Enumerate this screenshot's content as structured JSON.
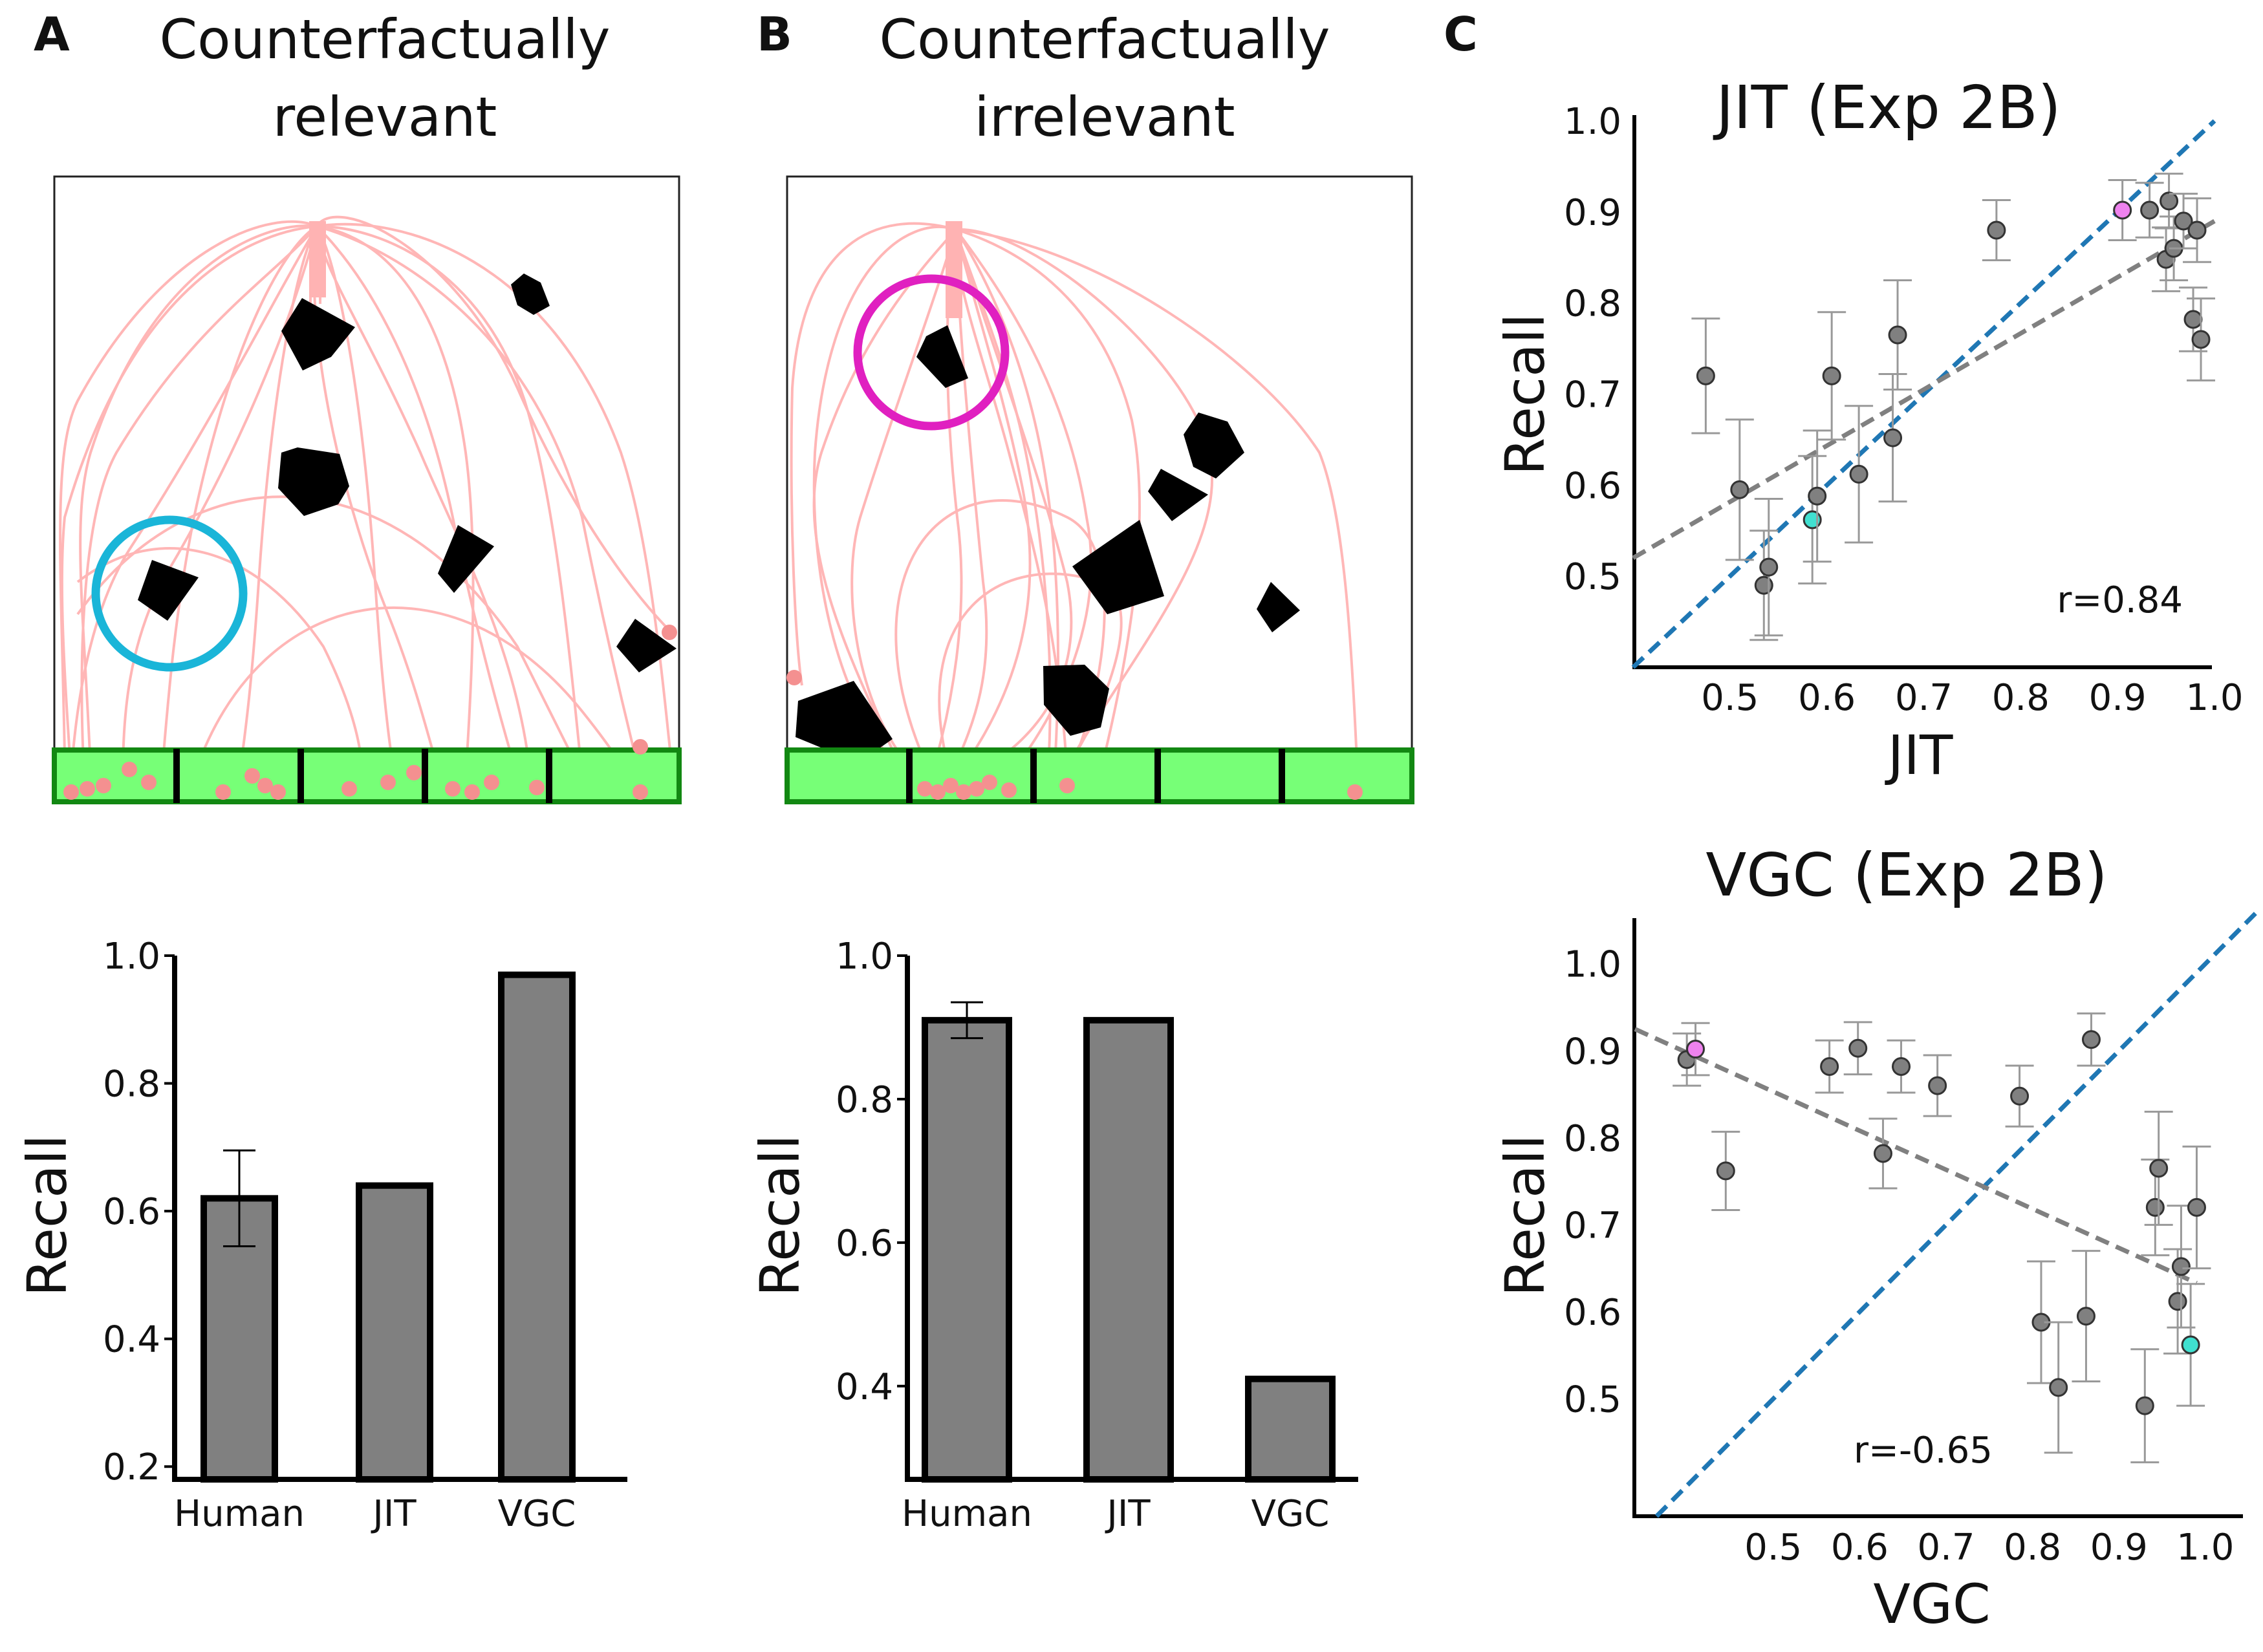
{
  "panels": {
    "A": {
      "letter": "A",
      "title_line1": "Counterfactually",
      "title_line2": "relevant"
    },
    "B": {
      "letter": "B",
      "title_line1": "Counterfactually",
      "title_line2": "irrelevant"
    },
    "C": {
      "letter": "C"
    }
  },
  "chart_data": [
    {
      "id": "bar-relevant",
      "type": "bar",
      "title": "",
      "xlabel": "",
      "ylabel": "Recall",
      "categories": [
        "Human",
        "JIT",
        "VGC"
      ],
      "values": [
        0.62,
        0.64,
        0.97
      ],
      "errors": [
        0.075,
        null,
        null
      ],
      "ylim": [
        0.18,
        1.0
      ],
      "yticks": [
        0.2,
        0.4,
        0.6,
        0.8,
        1.0
      ],
      "ytick_labels": [
        "0.2",
        "0.4",
        "0.6",
        "0.8",
        "1.0"
      ]
    },
    {
      "id": "bar-irrelevant",
      "type": "bar",
      "title": "",
      "xlabel": "",
      "ylabel": "Recall",
      "categories": [
        "Human",
        "JIT",
        "VGC"
      ],
      "values": [
        0.91,
        0.91,
        0.41
      ],
      "errors": [
        0.025,
        null,
        null
      ],
      "ylim": [
        0.27,
        1.0
      ],
      "yticks": [
        0.4,
        0.6,
        0.8,
        1.0
      ],
      "ytick_labels": [
        "0.4",
        "0.6",
        "0.8",
        "1.0"
      ]
    },
    {
      "id": "scatter-jit",
      "type": "scatter",
      "title": "JIT (Exp 2B)",
      "xlabel": "JIT",
      "ylabel": "Recall",
      "annotation": "r=0.84",
      "xlim": [
        0.4,
        1.0
      ],
      "ylim": [
        0.4,
        1.0
      ],
      "xticks": [
        0.5,
        0.6,
        0.7,
        0.8,
        0.9,
        1.0
      ],
      "xtick_labels": [
        "0.5",
        "0.6",
        "0.7",
        "0.8",
        "0.9",
        "1.0"
      ],
      "yticks": [
        0.5,
        0.6,
        0.7,
        0.8,
        0.9,
        1.0
      ],
      "ytick_labels": [
        "0.5",
        "0.6",
        "0.7",
        "0.8",
        "0.9",
        "1.0"
      ],
      "identity_line_color": "#1f77b4",
      "fit_line_color": "#808080",
      "fit_line": {
        "x": [
          0.4,
          1.0
        ],
        "y": [
          0.52,
          0.89
        ]
      },
      "points": [
        {
          "x": 0.475,
          "y": 0.72,
          "err": 0.063,
          "color": "#808080"
        },
        {
          "x": 0.51,
          "y": 0.595,
          "err": 0.077,
          "color": "#808080"
        },
        {
          "x": 0.535,
          "y": 0.49,
          "err": 0.06,
          "color": "#808080"
        },
        {
          "x": 0.54,
          "y": 0.51,
          "err": 0.075,
          "color": "#808080"
        },
        {
          "x": 0.585,
          "y": 0.562,
          "err": 0.07,
          "color": "#40e0d0"
        },
        {
          "x": 0.59,
          "y": 0.588,
          "err": 0.072,
          "color": "#808080"
        },
        {
          "x": 0.605,
          "y": 0.72,
          "err": 0.07,
          "color": "#808080"
        },
        {
          "x": 0.633,
          "y": 0.612,
          "err": 0.075,
          "color": "#808080"
        },
        {
          "x": 0.668,
          "y": 0.652,
          "err": 0.07,
          "color": "#808080"
        },
        {
          "x": 0.673,
          "y": 0.765,
          "err": 0.06,
          "color": "#808080"
        },
        {
          "x": 0.775,
          "y": 0.88,
          "err": 0.033,
          "color": "#808080"
        },
        {
          "x": 0.905,
          "y": 0.902,
          "err": 0.033,
          "color": "#ee82ee"
        },
        {
          "x": 0.933,
          "y": 0.902,
          "err": 0.03,
          "color": "#808080"
        },
        {
          "x": 0.95,
          "y": 0.848,
          "err": 0.035,
          "color": "#808080"
        },
        {
          "x": 0.953,
          "y": 0.912,
          "err": 0.03,
          "color": "#808080"
        },
        {
          "x": 0.958,
          "y": 0.86,
          "err": 0.035,
          "color": "#808080"
        },
        {
          "x": 0.968,
          "y": 0.89,
          "err": 0.03,
          "color": "#808080"
        },
        {
          "x": 0.978,
          "y": 0.782,
          "err": 0.035,
          "color": "#808080"
        },
        {
          "x": 0.982,
          "y": 0.88,
          "err": 0.035,
          "color": "#808080"
        },
        {
          "x": 0.986,
          "y": 0.76,
          "err": 0.045,
          "color": "#808080"
        }
      ]
    },
    {
      "id": "scatter-vgc",
      "type": "scatter",
      "title": "VGC (Exp 2B)",
      "xlabel": "VGC",
      "ylabel": "Recall",
      "annotation": "r=-0.65",
      "xlim": [
        0.34,
        1.06
      ],
      "ylim": [
        0.365,
        1.06
      ],
      "xticks": [
        0.5,
        0.6,
        0.7,
        0.8,
        0.9,
        1.0
      ],
      "xtick_labels": [
        "0.5",
        "0.6",
        "0.7",
        "0.8",
        "0.9",
        "1.0"
      ],
      "yticks": [
        0.5,
        0.6,
        0.7,
        0.8,
        0.9,
        1.0
      ],
      "ytick_labels": [
        "0.5",
        "0.6",
        "0.7",
        "0.8",
        "0.9",
        "1.0"
      ],
      "identity_line_color": "#1f77b4",
      "fit_line_color": "#808080",
      "fit_line": {
        "x": [
          0.34,
          0.99
        ],
        "y": [
          0.925,
          0.633
        ]
      },
      "points": [
        {
          "x": 0.4,
          "y": 0.89,
          "err": 0.03,
          "color": "#808080"
        },
        {
          "x": 0.41,
          "y": 0.902,
          "err": 0.03,
          "color": "#ee82ee"
        },
        {
          "x": 0.445,
          "y": 0.762,
          "err": 0.045,
          "color": "#808080"
        },
        {
          "x": 0.565,
          "y": 0.882,
          "err": 0.03,
          "color": "#808080"
        },
        {
          "x": 0.598,
          "y": 0.903,
          "err": 0.03,
          "color": "#808080"
        },
        {
          "x": 0.627,
          "y": 0.782,
          "err": 0.04,
          "color": "#808080"
        },
        {
          "x": 0.648,
          "y": 0.882,
          "err": 0.03,
          "color": "#808080"
        },
        {
          "x": 0.69,
          "y": 0.86,
          "err": 0.035,
          "color": "#808080"
        },
        {
          "x": 0.785,
          "y": 0.848,
          "err": 0.035,
          "color": "#808080"
        },
        {
          "x": 0.81,
          "y": 0.588,
          "err": 0.07,
          "color": "#808080"
        },
        {
          "x": 0.83,
          "y": 0.513,
          "err": 0.075,
          "color": "#808080"
        },
        {
          "x": 0.862,
          "y": 0.595,
          "err": 0.075,
          "color": "#808080"
        },
        {
          "x": 0.868,
          "y": 0.913,
          "err": 0.03,
          "color": "#808080"
        },
        {
          "x": 0.93,
          "y": 0.492,
          "err": 0.065,
          "color": "#808080"
        },
        {
          "x": 0.942,
          "y": 0.72,
          "err": 0.055,
          "color": "#808080"
        },
        {
          "x": 0.946,
          "y": 0.765,
          "err": 0.065,
          "color": "#808080"
        },
        {
          "x": 0.968,
          "y": 0.612,
          "err": 0.06,
          "color": "#808080"
        },
        {
          "x": 0.972,
          "y": 0.652,
          "err": 0.07,
          "color": "#808080"
        },
        {
          "x": 0.983,
          "y": 0.562,
          "err": 0.07,
          "color": "#40e0d0"
        },
        {
          "x": 0.99,
          "y": 0.72,
          "err": 0.07,
          "color": "#808080"
        }
      ]
    }
  ],
  "palette": {
    "trajectory": "#ffb3b3",
    "obstacle": "#000000",
    "floor": "#77ff77",
    "floor_edge": "#128812",
    "relevant_circle": "#1ab5d8",
    "irrelevant_circle": "#e020c0",
    "bar_fill": "#808080",
    "bar_edge": "#000000"
  }
}
